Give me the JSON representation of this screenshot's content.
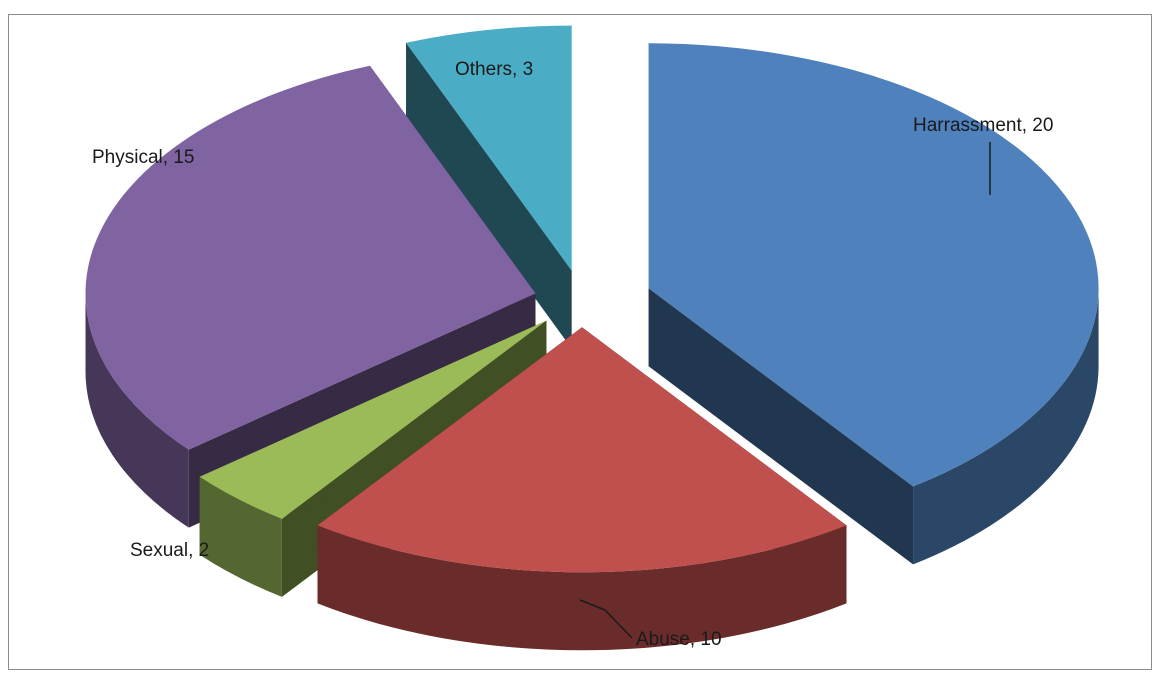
{
  "chart_data": {
    "type": "pie",
    "style": "3d-exploded",
    "title": "",
    "categories": [
      "Harrassment",
      "Abuse",
      "Sexual",
      "Physical",
      "Others"
    ],
    "values": [
      20,
      10,
      2,
      15,
      3
    ],
    "colors": [
      "#4f81bd",
      "#c0504d",
      "#9bbb59",
      "#8064a2",
      "#4bacc6"
    ],
    "labels": [
      "Harrassment, 20",
      "Abuse, 10",
      "Sexual, 2",
      "Physical, 15",
      "Others, 3"
    ],
    "legend": "none"
  }
}
